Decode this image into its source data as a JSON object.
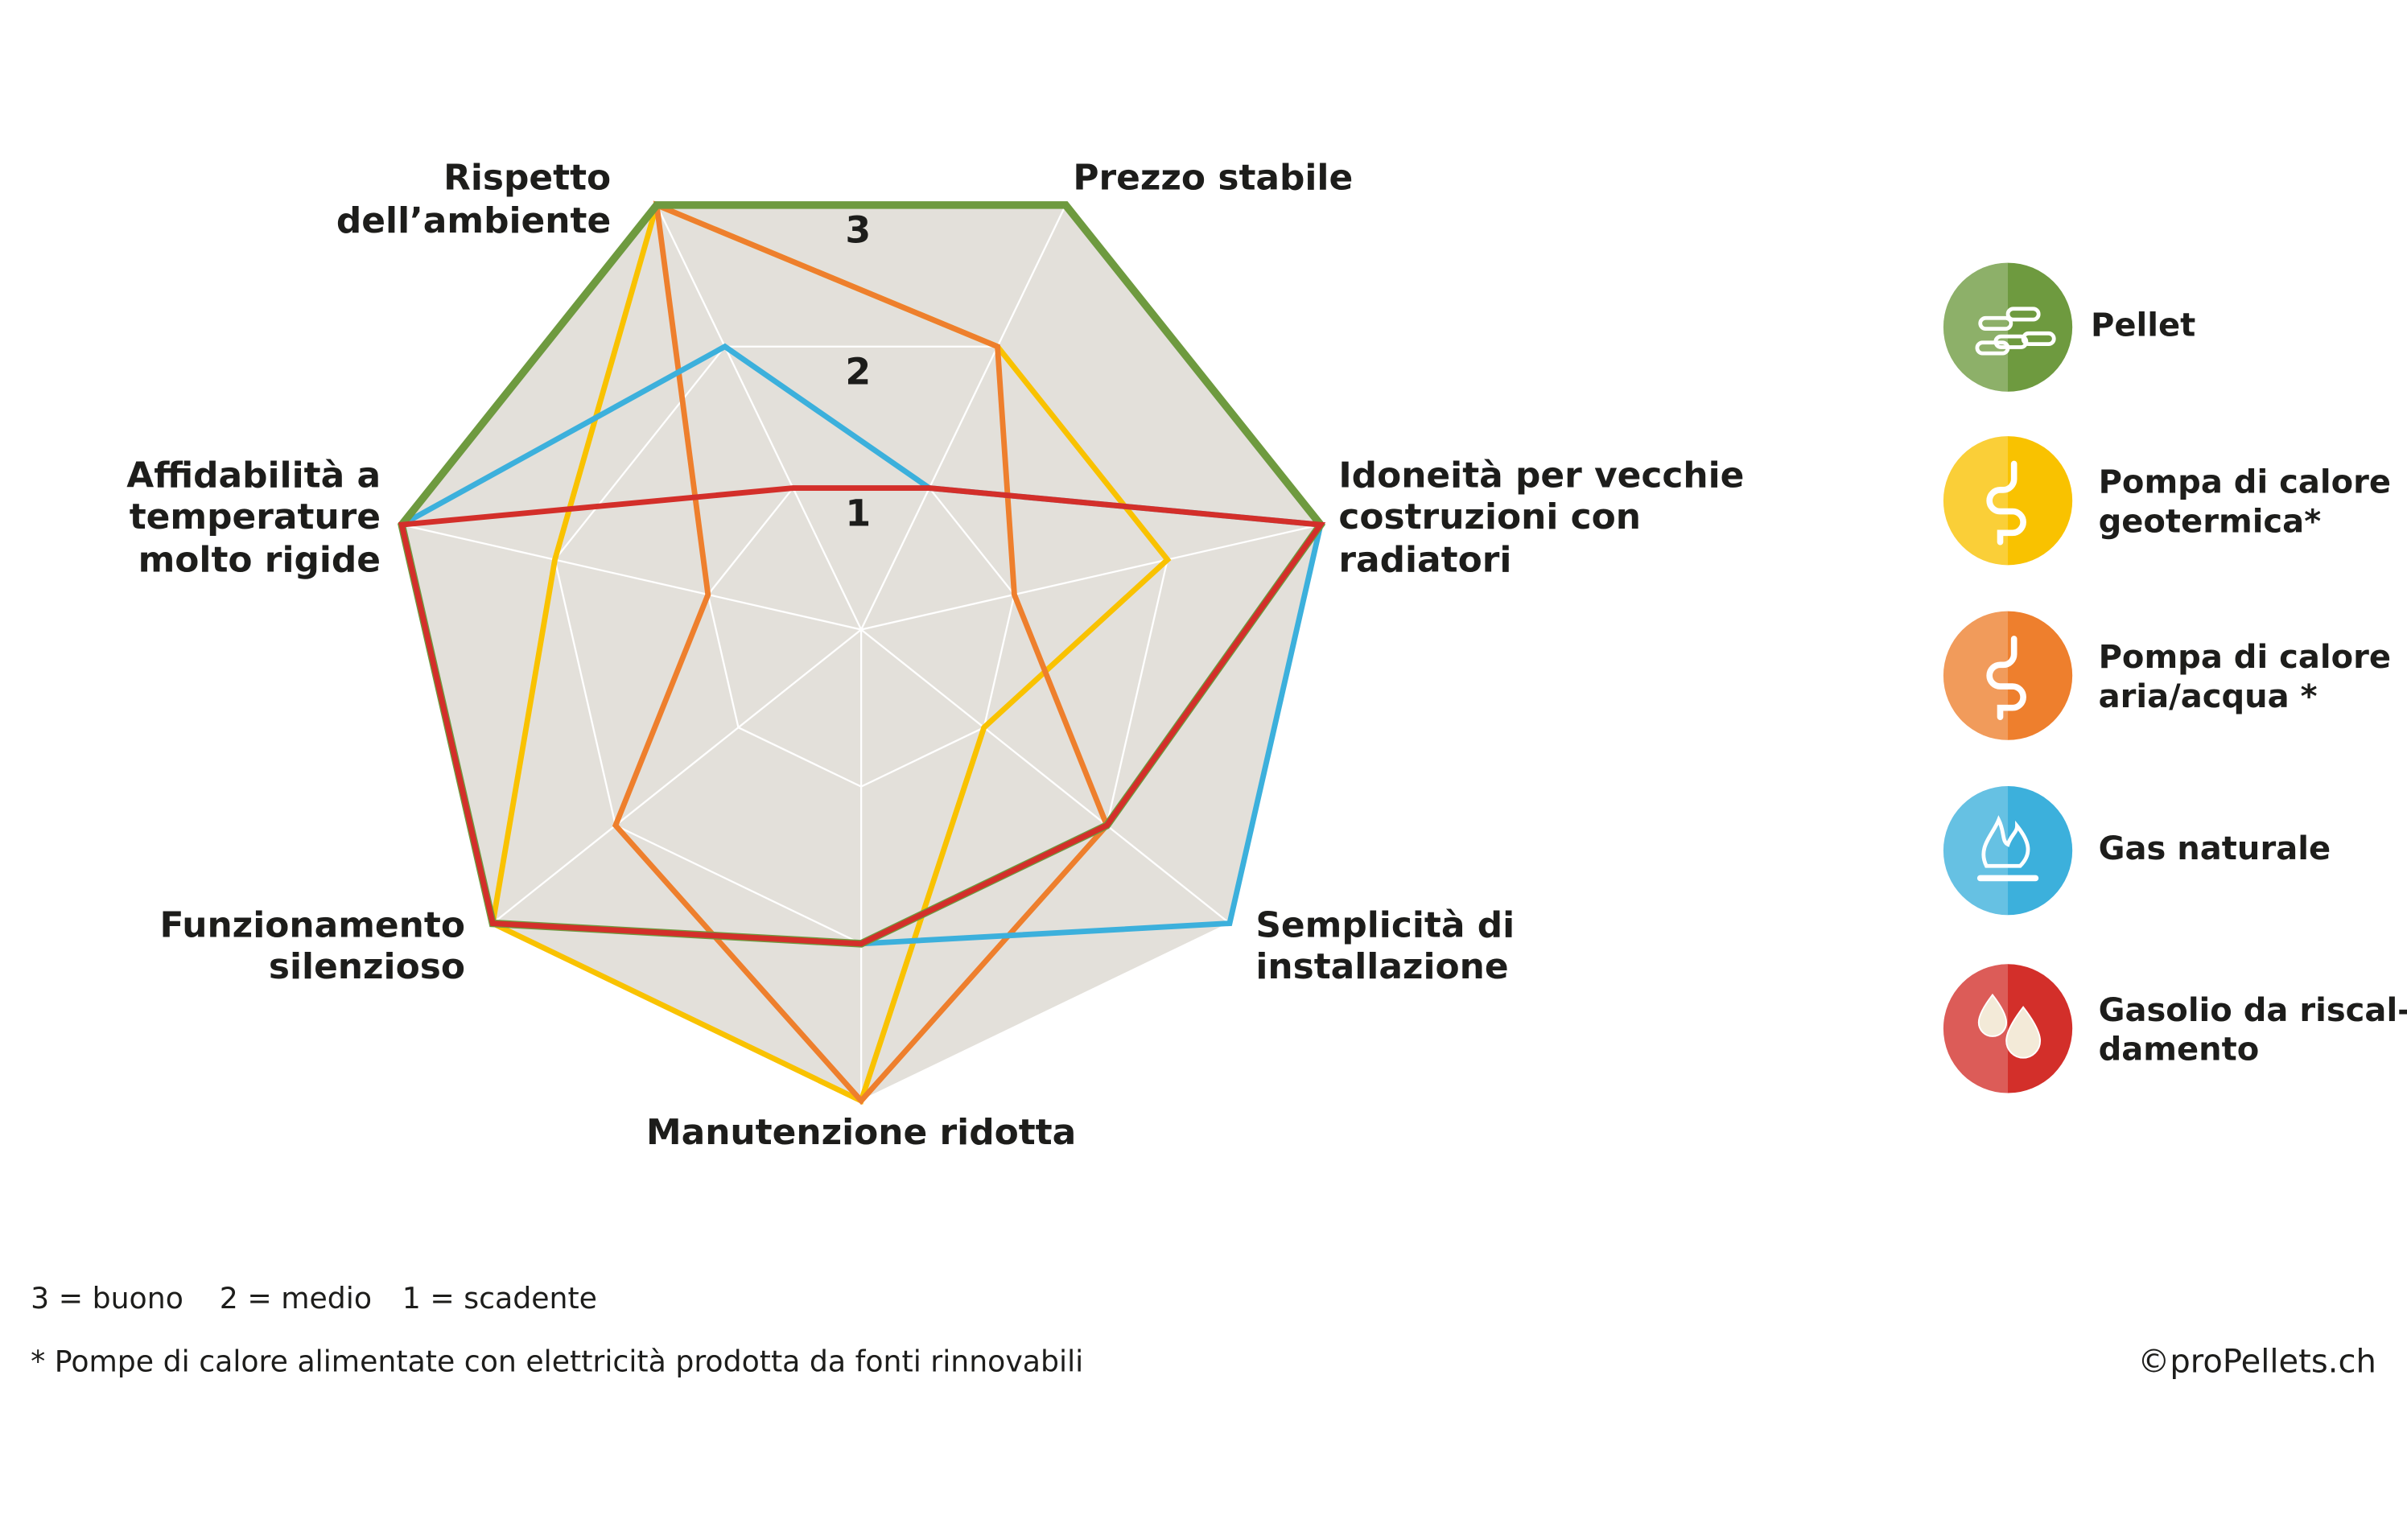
{
  "chart_data": {
    "type": "radar",
    "categories": [
      [
        "Prezzo stabile"
      ],
      [
        "Idoneità per vecchie",
        "costruzioni con",
        "radiatori"
      ],
      [
        "Semplicità di",
        "installazione"
      ],
      [
        "Manutenzione ridotta"
      ],
      [
        "Funzionamento",
        "silenzioso"
      ],
      [
        "Affidabilità a",
        "temperature",
        "molto rigide"
      ],
      [
        "Rispetto",
        "dell’ambiente"
      ]
    ],
    "rlim": [
      0,
      3
    ],
    "rticks": [
      1,
      2,
      3
    ],
    "grid": true,
    "legend": "right",
    "series": [
      {
        "name": [
          "Pompa di calore",
          "geotermica*"
        ],
        "color": "#f9c200",
        "values": [
          2,
          2,
          1,
          3,
          3,
          2,
          3
        ]
      },
      {
        "name": [
          "Pompa di calore",
          "aria/acqua *"
        ],
        "color": "#ee7f2d",
        "values": [
          2,
          1,
          2,
          3,
          2,
          1,
          3
        ]
      },
      {
        "name": [
          "Gas naturale"
        ],
        "color": "#3cb0dc",
        "values": [
          1,
          3,
          3,
          2,
          3,
          3,
          2
        ]
      },
      {
        "name": [
          "Pellet"
        ],
        "color": "#6e9a3f",
        "values": [
          3,
          3,
          2,
          2,
          3,
          3,
          3
        ]
      },
      {
        "name": [
          "Gasolio da riscal-",
          "damento"
        ],
        "color": "#d32f2a",
        "values": [
          1,
          3,
          2,
          2,
          3,
          3,
          1
        ]
      }
    ],
    "scale_note": [
      "3 = buono",
      "2 = medio",
      "1 = scadente"
    ],
    "footnote": "* Pompe di calore alimentate con elettricità prodotta da fonti rinnovabili",
    "credit": "©proPellets.ch"
  }
}
